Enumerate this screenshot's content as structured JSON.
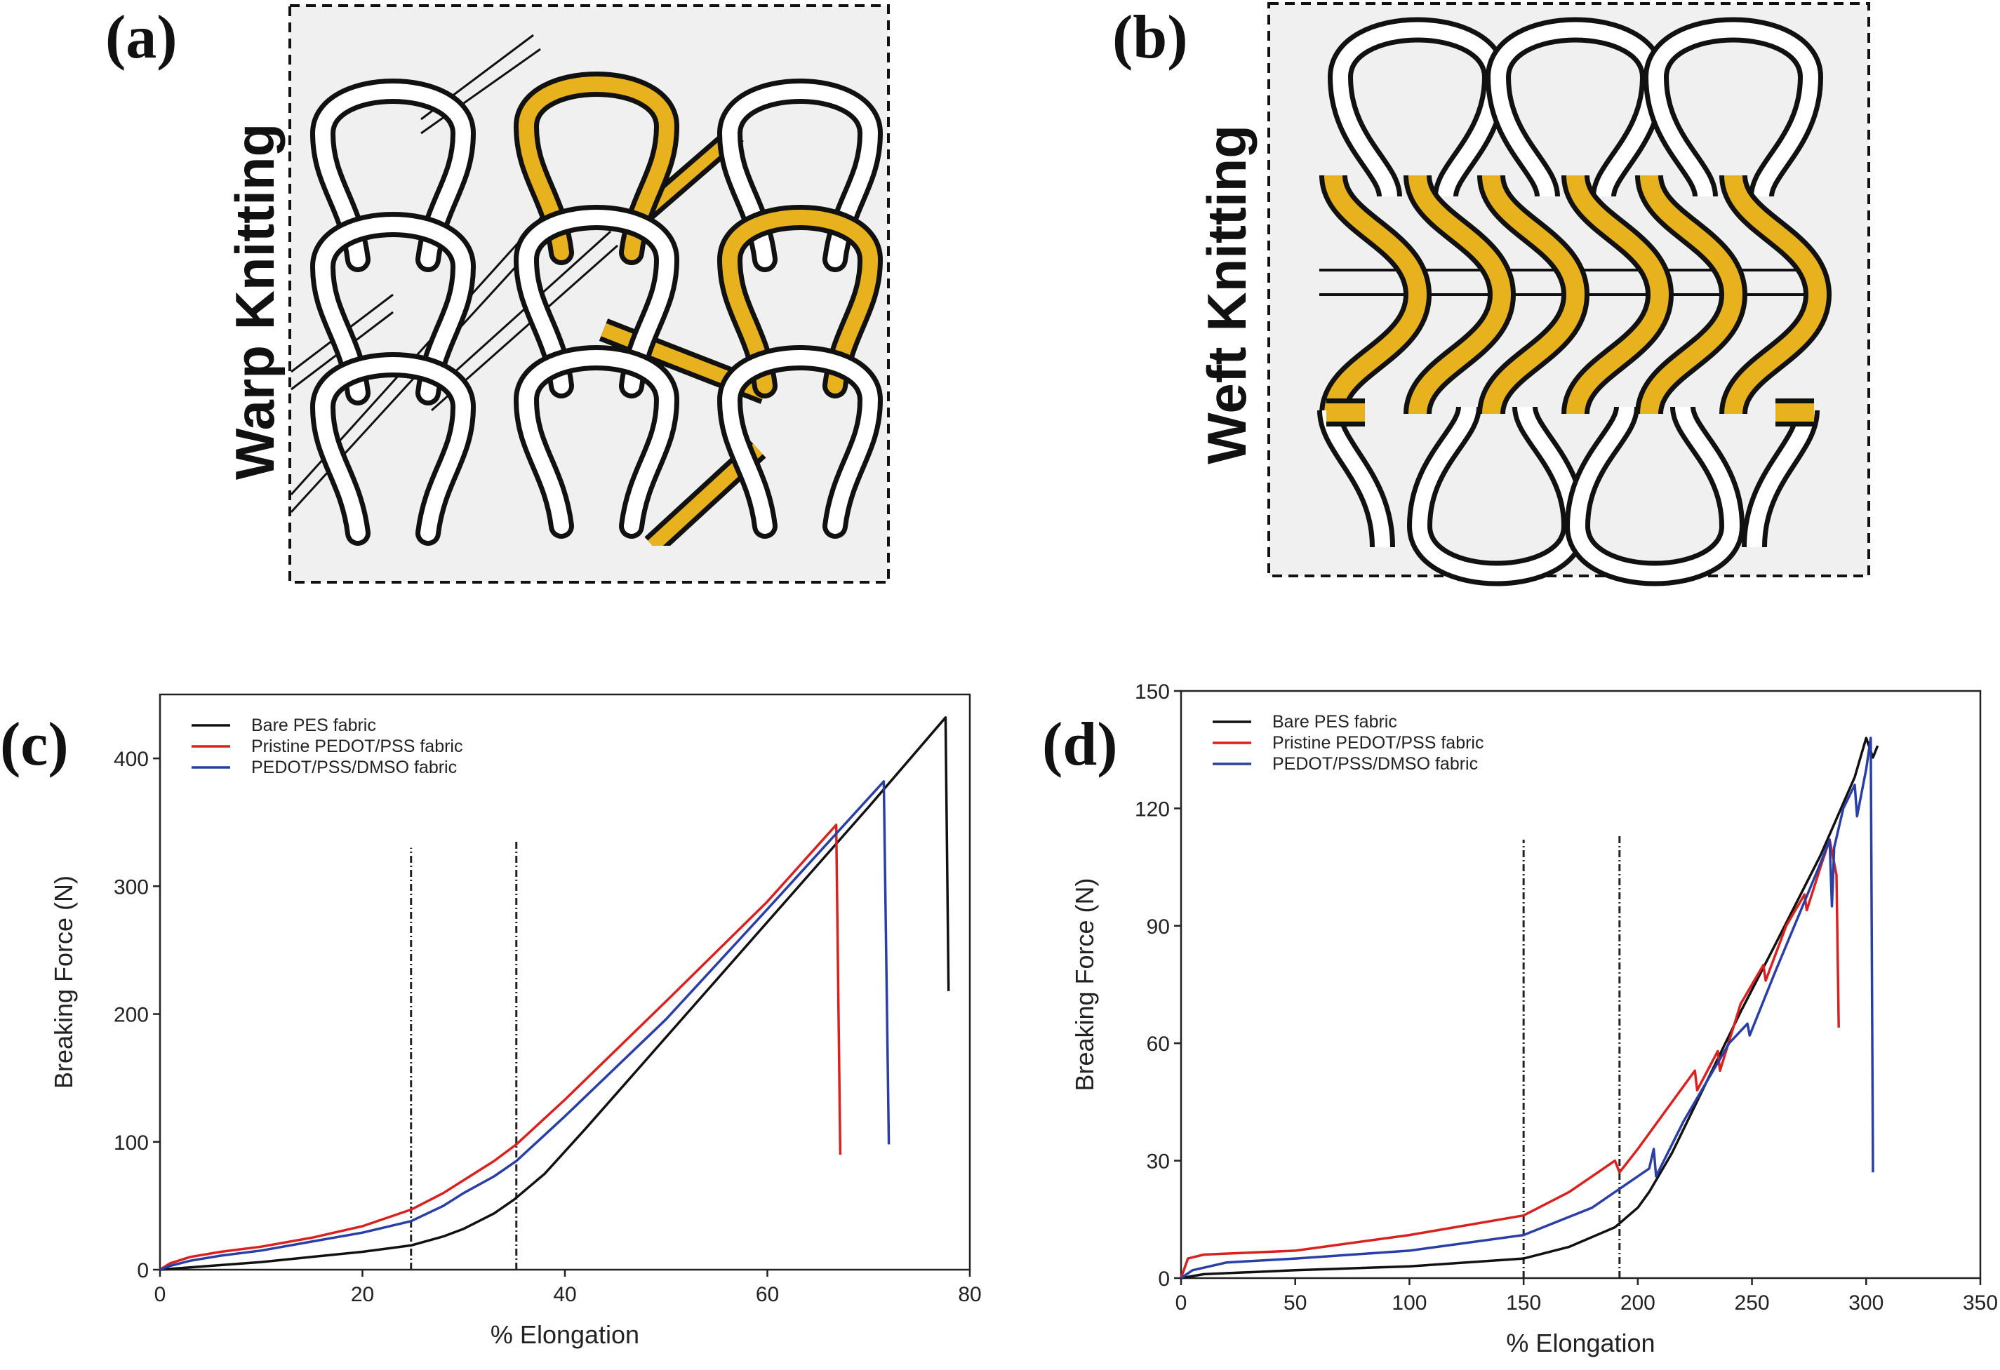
{
  "panels": {
    "a": {
      "letter": "(a)",
      "title": "Warp Knitting"
    },
    "b": {
      "letter": "(b)",
      "title": "Weft Knitting"
    },
    "c": {
      "letter": "(c)"
    },
    "d": {
      "letter": "(d)"
    }
  },
  "colors": {
    "yarn_accent": "#E8B21E",
    "schematic_bg": "#f0f0f0"
  },
  "chart_data": [
    {
      "id": "c",
      "type": "line",
      "xlabel": "% Elongation",
      "ylabel": "Breaking Force (N)",
      "xlim": [
        0,
        80
      ],
      "ylim": [
        0,
        450
      ],
      "xticks": [
        0,
        20,
        40,
        60,
        80
      ],
      "yticks": [
        0,
        100,
        200,
        300,
        400
      ],
      "vlines": [
        {
          "x": 24.8,
          "y_top": 330
        },
        {
          "x": 35.2,
          "y_top": 335
        }
      ],
      "legend": [
        "Bare PES fabric",
        "Pristine PEDOT/PSS fabric",
        "PEDOT/PSS/DMSO fabric"
      ],
      "series": [
        {
          "name": "Bare PES fabric",
          "color": "#111111",
          "points": [
            [
              0,
              0
            ],
            [
              5,
              3
            ],
            [
              10,
              6
            ],
            [
              15,
              10
            ],
            [
              20,
              14
            ],
            [
              24.8,
              19
            ],
            [
              28,
              26
            ],
            [
              30,
              32
            ],
            [
              33,
              44
            ],
            [
              35,
              55
            ],
            [
              38,
              75
            ],
            [
              42,
              110
            ],
            [
              50,
              182
            ],
            [
              60,
              272
            ],
            [
              70,
              362
            ],
            [
              77.6,
              432
            ],
            [
              77.9,
              218
            ]
          ]
        },
        {
          "name": "Pristine PEDOT/PSS fabric",
          "color": "#d9211f",
          "points": [
            [
              0,
              0
            ],
            [
              1,
              5
            ],
            [
              3,
              10
            ],
            [
              6,
              14
            ],
            [
              10,
              18
            ],
            [
              15,
              25
            ],
            [
              20,
              34
            ],
            [
              24.8,
              47
            ],
            [
              28,
              60
            ],
            [
              30,
              70
            ],
            [
              33,
              85
            ],
            [
              35.2,
              98
            ],
            [
              40,
              133
            ],
            [
              50,
              210
            ],
            [
              60,
              288
            ],
            [
              66.8,
              348
            ],
            [
              67.2,
              90
            ]
          ]
        },
        {
          "name": "PEDOT/PSS/DMSO fabric",
          "color": "#2a3fa6",
          "points": [
            [
              0,
              0
            ],
            [
              1,
              3
            ],
            [
              3,
              7
            ],
            [
              6,
              11
            ],
            [
              10,
              15
            ],
            [
              15,
              22
            ],
            [
              20,
              29
            ],
            [
              24.8,
              38
            ],
            [
              28,
              50
            ],
            [
              30,
              60
            ],
            [
              33,
              73
            ],
            [
              35.2,
              85
            ],
            [
              40,
              120
            ],
            [
              50,
              196
            ],
            [
              60,
              282
            ],
            [
              71.5,
              382
            ],
            [
              72,
              98
            ]
          ]
        }
      ]
    },
    {
      "id": "d",
      "type": "line",
      "xlabel": "% Elongation",
      "ylabel": "Breaking Force (N)",
      "xlim": [
        0,
        350
      ],
      "ylim": [
        0,
        150
      ],
      "xticks": [
        0,
        50,
        100,
        150,
        200,
        250,
        300,
        350
      ],
      "yticks": [
        0,
        30,
        60,
        90,
        120,
        150
      ],
      "vlines": [
        {
          "x": 150,
          "y_top": 112
        },
        {
          "x": 192,
          "y_top": 113
        }
      ],
      "legend": [
        "Bare PES fabric",
        "Pristine PEDOT/PSS fabric",
        "PEDOT/PSS/DMSO fabric"
      ],
      "series": [
        {
          "name": "Bare PES fabric",
          "color": "#111111",
          "points": [
            [
              0,
              0
            ],
            [
              10,
              1
            ],
            [
              50,
              2
            ],
            [
              100,
              3
            ],
            [
              150,
              5
            ],
            [
              170,
              8
            ],
            [
              190,
              13
            ],
            [
              200,
              18
            ],
            [
              205,
              22
            ],
            [
              215,
              32
            ],
            [
              230,
              50
            ],
            [
              245,
              68
            ],
            [
              260,
              85
            ],
            [
              280,
              108
            ],
            [
              295,
              128
            ],
            [
              300,
              138
            ],
            [
              303,
              133
            ],
            [
              305,
              136
            ]
          ]
        },
        {
          "name": "Pristine PEDOT/PSS fabric",
          "color": "#d9211f",
          "points": [
            [
              0,
              0
            ],
            [
              3,
              5
            ],
            [
              10,
              6
            ],
            [
              50,
              7
            ],
            [
              100,
              11
            ],
            [
              150,
              16
            ],
            [
              170,
              22
            ],
            [
              185,
              28
            ],
            [
              190,
              30
            ],
            [
              192,
              27
            ],
            [
              200,
              33
            ],
            [
              215,
              45
            ],
            [
              225,
              53
            ],
            [
              226,
              48
            ],
            [
              235,
              58
            ],
            [
              236,
              53
            ],
            [
              245,
              70
            ],
            [
              255,
              80
            ],
            [
              256,
              76
            ],
            [
              265,
              90
            ],
            [
              273,
              98
            ],
            [
              274,
              94
            ],
            [
              280,
              105
            ],
            [
              284,
              112
            ],
            [
              287,
              103
            ],
            [
              288,
              64
            ]
          ]
        },
        {
          "name": "PEDOT/PSS/DMSO fabric",
          "color": "#2a3fa6",
          "points": [
            [
              0,
              0
            ],
            [
              5,
              2
            ],
            [
              20,
              4
            ],
            [
              50,
              5
            ],
            [
              100,
              7
            ],
            [
              150,
              11
            ],
            [
              180,
              18
            ],
            [
              195,
              24
            ],
            [
              205,
              28
            ],
            [
              207,
              33
            ],
            [
              208,
              26
            ],
            [
              220,
              40
            ],
            [
              240,
              60
            ],
            [
              248,
              65
            ],
            [
              249,
              62
            ],
            [
              260,
              78
            ],
            [
              270,
              92
            ],
            [
              280,
              106
            ],
            [
              284,
              112
            ],
            [
              285,
              95
            ],
            [
              286,
              110
            ],
            [
              290,
              120
            ],
            [
              295,
              126
            ],
            [
              296,
              118
            ],
            [
              300,
              130
            ],
            [
              302,
              138
            ],
            [
              303,
              27
            ]
          ]
        }
      ]
    }
  ]
}
